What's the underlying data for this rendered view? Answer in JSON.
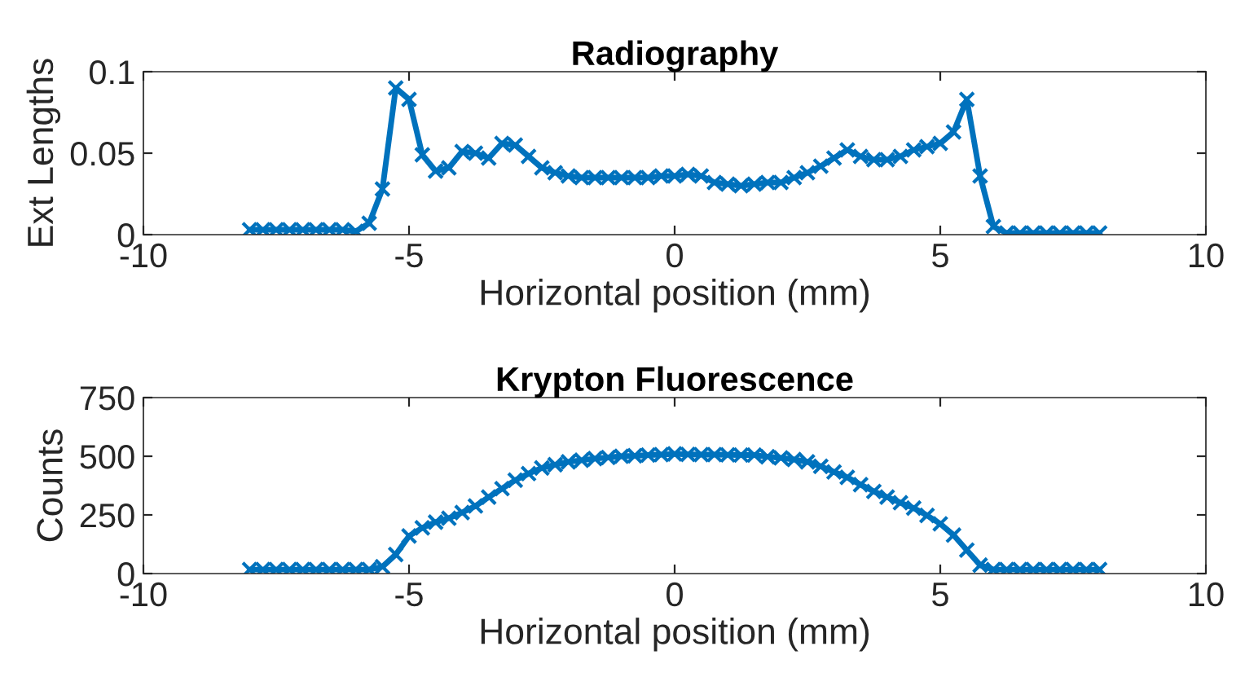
{
  "chart_data": [
    {
      "type": "line",
      "title": "Radiography",
      "xlabel": "Horizontal position (mm)",
      "ylabel": "Ext Lengths",
      "xlim": [
        -10,
        10
      ],
      "xticks": [
        -10,
        -5,
        0,
        5,
        10
      ],
      "ylim": [
        0,
        0.1
      ],
      "yticks": [
        0,
        0.05,
        0.1
      ],
      "grid": false,
      "marker": "cross",
      "line_style": "solid",
      "series": [
        {
          "color": "#0072bd",
          "x": [
            -8,
            -7.75,
            -7.5,
            -7.25,
            -7,
            -6.75,
            -6.5,
            -6.25,
            -6,
            -5.75,
            -5.5,
            -5.25,
            -5,
            -4.75,
            -4.5,
            -4.25,
            -4,
            -3.75,
            -3.5,
            -3.25,
            -3,
            -2.75,
            -2.5,
            -2.25,
            -2,
            -1.75,
            -1.5,
            -1.25,
            -1,
            -0.75,
            -0.5,
            -0.25,
            0,
            0.25,
            0.5,
            0.75,
            1,
            1.25,
            1.5,
            1.75,
            2,
            2.25,
            2.5,
            2.75,
            3,
            3.25,
            3.5,
            3.75,
            4,
            4.25,
            4.5,
            4.75,
            5,
            5.25,
            5.5,
            5.75,
            6,
            6.25,
            6.5,
            6.75,
            7,
            7.25,
            7.5,
            7.75,
            8
          ],
          "values": [
            0.003,
            0.003,
            0.003,
            0.003,
            0.003,
            0.003,
            0.003,
            0.003,
            0.002,
            0.007,
            0.028,
            0.09,
            0.083,
            0.049,
            0.039,
            0.041,
            0.051,
            0.05,
            0.047,
            0.056,
            0.055,
            0.048,
            0.041,
            0.038,
            0.036,
            0.035,
            0.035,
            0.035,
            0.035,
            0.035,
            0.035,
            0.036,
            0.036,
            0.037,
            0.036,
            0.032,
            0.031,
            0.03,
            0.031,
            0.032,
            0.032,
            0.035,
            0.038,
            0.042,
            0.047,
            0.052,
            0.048,
            0.046,
            0.046,
            0.048,
            0.052,
            0.054,
            0.056,
            0.063,
            0.083,
            0.036,
            0.005,
            0.001,
            0.001,
            0.001,
            0.001,
            0.001,
            0.001,
            0.001,
            0.001
          ]
        }
      ]
    },
    {
      "type": "line",
      "title": "Krypton Fluorescence",
      "xlabel": "Horizontal position (mm)",
      "ylabel": "Counts",
      "xlim": [
        -10,
        10
      ],
      "xticks": [
        -10,
        -5,
        0,
        5,
        10
      ],
      "ylim": [
        0,
        750
      ],
      "yticks": [
        0,
        250,
        500,
        750
      ],
      "grid": false,
      "marker": "cross",
      "line_style": "solid",
      "series": [
        {
          "color": "#0072bd",
          "x": [
            -8,
            -7.75,
            -7.5,
            -7.25,
            -7,
            -6.75,
            -6.5,
            -6.25,
            -6,
            -5.75,
            -5.5,
            -5.25,
            -5,
            -4.75,
            -4.5,
            -4.25,
            -4,
            -3.75,
            -3.5,
            -3.25,
            -3,
            -2.75,
            -2.5,
            -2.25,
            -2,
            -1.75,
            -1.5,
            -1.25,
            -1,
            -0.75,
            -0.5,
            -0.25,
            0,
            0.25,
            0.5,
            0.75,
            1,
            1.25,
            1.5,
            1.75,
            2,
            2.25,
            2.5,
            2.75,
            3,
            3.25,
            3.5,
            3.75,
            4,
            4.25,
            4.5,
            4.75,
            5,
            5.25,
            5.5,
            5.75,
            6,
            6.25,
            6.5,
            6.75,
            7,
            7.25,
            7.5,
            7.75,
            8
          ],
          "values": [
            17,
            17,
            17,
            17,
            17,
            17,
            17,
            17,
            17,
            17,
            29,
            81,
            160,
            195,
            219,
            236,
            260,
            288,
            326,
            362,
            398,
            426,
            450,
            464,
            476,
            483,
            490,
            495,
            500,
            502,
            505,
            507,
            510,
            508,
            507,
            507,
            506,
            505,
            505,
            498,
            493,
            486,
            476,
            457,
            433,
            410,
            379,
            350,
            326,
            302,
            279,
            248,
            212,
            164,
            100,
            36,
            17,
            17,
            17,
            17,
            17,
            17,
            17,
            17,
            17
          ]
        }
      ]
    }
  ]
}
